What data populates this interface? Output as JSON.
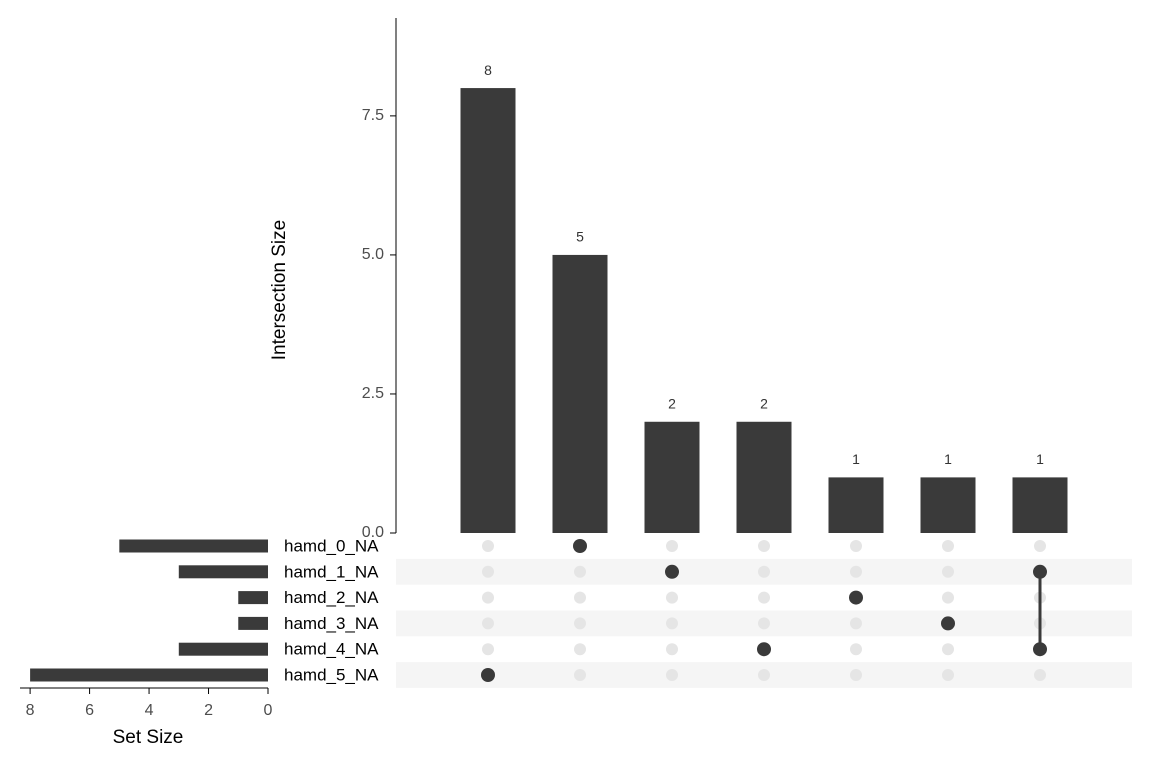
{
  "chart_data": {
    "type": "upset",
    "ylabel": "Intersection Size",
    "set_size_label": "Set Size",
    "values": [
      8,
      5,
      2,
      2,
      1,
      1,
      1
    ],
    "ylim": [
      0,
      9.26
    ],
    "yticks": [
      {
        "value": 0,
        "label": "0.0"
      },
      2.5,
      {
        "value": 5,
        "label": "5.0"
      },
      7.5
    ],
    "sets": [
      "hamd_0_NA",
      "hamd_1_NA",
      "hamd_2_NA",
      "hamd_3_NA",
      "hamd_4_NA",
      "hamd_5_NA"
    ],
    "set_sizes": [
      5,
      3,
      1,
      1,
      3,
      8
    ],
    "set_xlim": [
      8.34,
      0
    ],
    "set_xticks": [
      8,
      6,
      4,
      2,
      0
    ],
    "memberships": [
      [
        5
      ],
      [
        0
      ],
      [
        1
      ],
      [
        4
      ],
      [
        2
      ],
      [
        3
      ],
      [
        1,
        4
      ]
    ],
    "color": "#3a3a3a"
  }
}
